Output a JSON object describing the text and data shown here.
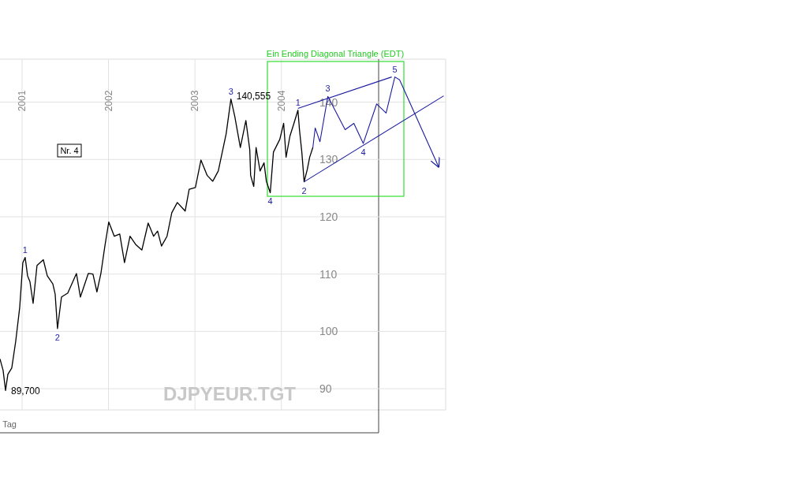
{
  "chart_data": {
    "type": "line",
    "title": "Ein Ending Diagonal Triangle (EDT)",
    "xlim": [
      2000.745,
      2005.9
    ],
    "xticks": [
      2001,
      2002,
      2003,
      2004
    ],
    "ylim": [
      86.3,
      147.5
    ],
    "yticks": [
      90,
      100,
      110,
      120,
      130,
      140
    ],
    "grid": true,
    "marker": "none",
    "line_style": "solid",
    "series": [
      {
        "color": "#000000",
        "x": [
          2000.745,
          2000.781,
          2000.809,
          2000.836,
          2000.881,
          2000.927,
          2000.973,
          2001.009,
          2001.036,
          2001.064,
          2001.091,
          2001.128,
          2001.173,
          2001.246,
          2001.292,
          2001.356,
          2001.383,
          2001.41,
          2001.456,
          2001.529,
          2001.629,
          2001.675,
          2001.766,
          2001.82,
          2001.866,
          2001.912,
          2001.957,
          2002.003,
          2002.067,
          2002.13,
          2002.185,
          2002.249,
          2002.313,
          2002.386,
          2002.459,
          2002.522,
          2002.568,
          2002.613,
          2002.677,
          2002.732,
          2002.796,
          2002.887,
          2002.933,
          2003.005,
          2003.069,
          2003.142,
          2003.206,
          2003.27,
          2003.361,
          2003.416,
          2003.461,
          2003.525,
          2003.589,
          2003.634,
          2003.644,
          2003.68,
          2003.707,
          2003.753,
          2003.799,
          2003.826,
          2003.871,
          2003.908,
          2003.981,
          2004.026,
          2004.054,
          2004.099,
          2004.145,
          2004.191,
          2004.209,
          2004.236,
          2004.263,
          2004.3,
          2004.327,
          2004.364
        ],
        "values": [
          95.2,
          93.2,
          89.7,
          92.5,
          93.6,
          98.3,
          104.2,
          112.0,
          112.9,
          109.7,
          108.7,
          104.9,
          111.5,
          112.5,
          109.7,
          108.3,
          106.5,
          100.5,
          106.0,
          106.7,
          110.1,
          106.0,
          110.1,
          110.0,
          106.9,
          110.1,
          114.8,
          119.1,
          116.6,
          117.0,
          112.0,
          116.6,
          115.2,
          114.2,
          118.9,
          116.6,
          117.5,
          114.9,
          116.6,
          120.7,
          122.5,
          121.0,
          124.8,
          125.1,
          129.9,
          127.2,
          126.2,
          128.0,
          134.5,
          140.555,
          137.5,
          132.1,
          136.8,
          131.7,
          127.2,
          125.3,
          132.1,
          128.0,
          129.4,
          126.2,
          124.2,
          131.3,
          133.5,
          136.3,
          130.4,
          134.1,
          136.3,
          138.6,
          135.2,
          131.3,
          126.1,
          128.3,
          130.4,
          132.1
        ]
      },
      {
        "color": "#1c1ca0",
        "x": [
          2004.364,
          2004.391,
          2004.446,
          2004.537,
          2004.737,
          2004.838,
          2004.947,
          2005.102,
          2005.211,
          2005.312,
          2005.367,
          2005.822
        ],
        "values": [
          132.1,
          135.5,
          133.1,
          141.0,
          135.2,
          136.3,
          132.8,
          139.7,
          138.1,
          144.4,
          143.9,
          128.6
        ]
      },
      {
        "color": "#1c1ca0",
        "x": [
          2004.191,
          2005.276
        ],
        "values": [
          138.9,
          144.4
        ]
      },
      {
        "color": "#1c1ca0",
        "x": [
          2004.263,
          2005.877
        ],
        "values": [
          126.1,
          141.1
        ]
      }
    ],
    "annotations": [
      {
        "text": "1",
        "x": 2001.036,
        "y": 112.9
      },
      {
        "text": "2",
        "x": 2001.41,
        "y": 100.5
      },
      {
        "text": "3",
        "x": 2003.416,
        "y": 140.555
      },
      {
        "text": "4",
        "x": 2003.871,
        "y": 124.2
      },
      {
        "text": "1",
        "x": 2004.191,
        "y": 138.6
      },
      {
        "text": "2",
        "x": 2004.263,
        "y": 126.1
      },
      {
        "text": "3",
        "x": 2004.537,
        "y": 141.0
      },
      {
        "text": "4",
        "x": 2004.947,
        "y": 132.8
      },
      {
        "text": "5",
        "x": 2005.312,
        "y": 144.4
      },
      {
        "text": "140,555",
        "x": 2003.416,
        "y": 140.555
      },
      {
        "text": "89,700",
        "x": 2000.809,
        "y": 89.7
      },
      "Nr. 4",
      "DJPYEUR.TGT",
      "Tag"
    ]
  }
}
